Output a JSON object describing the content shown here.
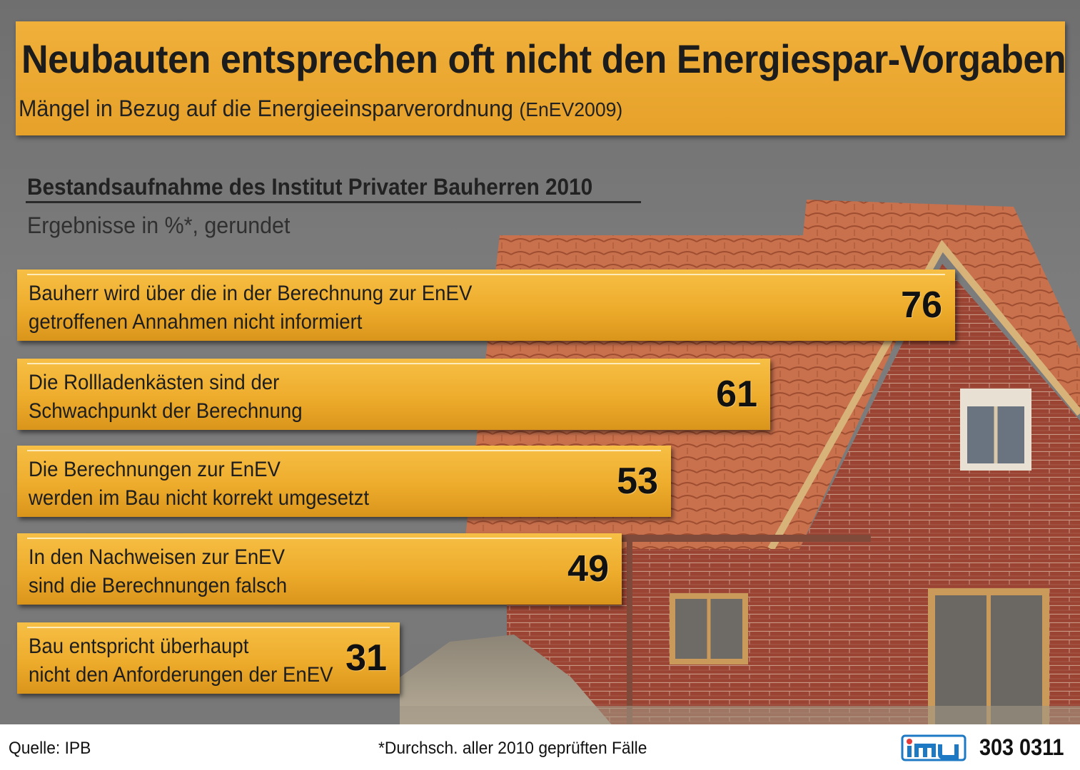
{
  "title": "Neubauten entsprechen oft nicht den Energiespar-Vorgaben",
  "subtitle_main": "Mängel in Bezug auf die Energieeinsparverordnung",
  "subtitle_suffix": "(EnEV2009)",
  "section_title": "Bestandsaufnahme des Institut Privater Bauherren 2010",
  "section_note": "Ergebnisse in %*, gerundet",
  "colors": {
    "accent": "#eeac2c",
    "background": "#777777",
    "text": "#1e1e1e"
  },
  "chart_data": {
    "type": "bar",
    "orientation": "horizontal",
    "unit": "%",
    "categories": [
      "Bauherr wird über die in der Berechnung zur EnEV getroffenen Annahmen nicht informiert",
      "Die Rollladenkästen sind der Schwachpunkt der Berechnung",
      "Die Berechnungen zur EnEV werden im Bau nicht korrekt umgesetzt",
      "In den Nachweisen zur EnEV sind die Berechnungen falsch",
      "Bau entspricht überhaupt nicht den Anforderungen der EnEV"
    ],
    "values": [
      76,
      61,
      53,
      49,
      31
    ],
    "bars": [
      {
        "line1": "Bauherr wird über die in der Berechnung zur EnEV",
        "line2": "getroffenen Annahmen nicht informiert",
        "value": 76
      },
      {
        "line1": "Die Rollladenkästen sind der",
        "line2": "Schwachpunkt der Berechnung",
        "value": 61
      },
      {
        "line1": "Die Berechnungen zur EnEV",
        "line2": "werden im Bau nicht korrekt umgesetzt",
        "value": 53
      },
      {
        "line1": "In den Nachweisen zur EnEV",
        "line2": "sind die Berechnungen falsch",
        "value": 49
      },
      {
        "line1": "Bau entspricht überhaupt",
        "line2": "nicht den Anforderungen der EnEV",
        "value": 31
      }
    ]
  },
  "footer": {
    "source": "Quelle: IPB",
    "note": "*Durchsch. aller 2010 geprüften Fälle",
    "logo": "imu",
    "code": "303 0311"
  }
}
